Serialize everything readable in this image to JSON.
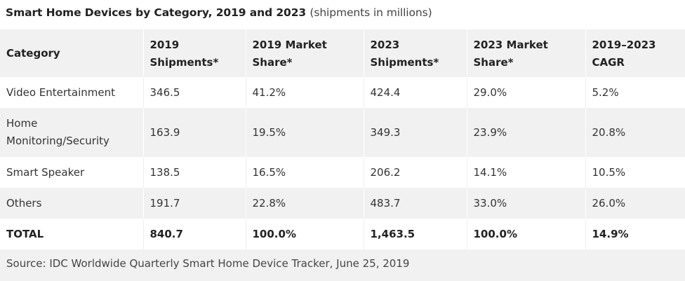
{
  "header": {
    "title": "Smart Home Devices by Category, 2019 and 2023",
    "subtitle": "(shipments in millions)"
  },
  "table": {
    "columns": [
      "Category",
      "2019 Shipments*",
      "2019 Market Share*",
      "2023 Shipments*",
      "2023 Market Share*",
      "2019–2023 CAGR"
    ],
    "column_lines": [
      [
        "Category"
      ],
      [
        "2019",
        "Shipments*"
      ],
      [
        "2019 Market",
        "Share*"
      ],
      [
        "2023",
        "Shipments*"
      ],
      [
        "2023 Market",
        "Share*"
      ],
      [
        "2019–2023",
        "CAGR"
      ]
    ],
    "rows": [
      {
        "category": "Video Entertainment",
        "shipments_2019": "346.5",
        "share_2019": "41.2%",
        "shipments_2023": "424.4",
        "share_2023": "29.0%",
        "cagr": "5.2%"
      },
      {
        "category": "Home Monitoring/Security",
        "shipments_2019": "163.9",
        "share_2019": "19.5%",
        "shipments_2023": "349.3",
        "share_2023": "23.9%",
        "cagr": "20.8%"
      },
      {
        "category": "Smart Speaker",
        "shipments_2019": "138.5",
        "share_2019": "16.5%",
        "shipments_2023": "206.2",
        "share_2023": "14.1%",
        "cagr": "10.5%"
      },
      {
        "category": "Others",
        "shipments_2019": "191.7",
        "share_2019": "22.8%",
        "shipments_2023": "483.7",
        "share_2023": "33.0%",
        "cagr": "26.0%"
      }
    ],
    "total": {
      "category": "TOTAL",
      "shipments_2019": "840.7",
      "share_2019": "100.0%",
      "shipments_2023": "1,463.5",
      "share_2023": "100.0%",
      "cagr": "14.9%"
    }
  },
  "footer": {
    "source": "Source: IDC Worldwide Quarterly Smart Home Device Tracker, June 25, 2019"
  },
  "colors": {
    "band_grey": "#f1f1f1",
    "text": "#222222"
  }
}
